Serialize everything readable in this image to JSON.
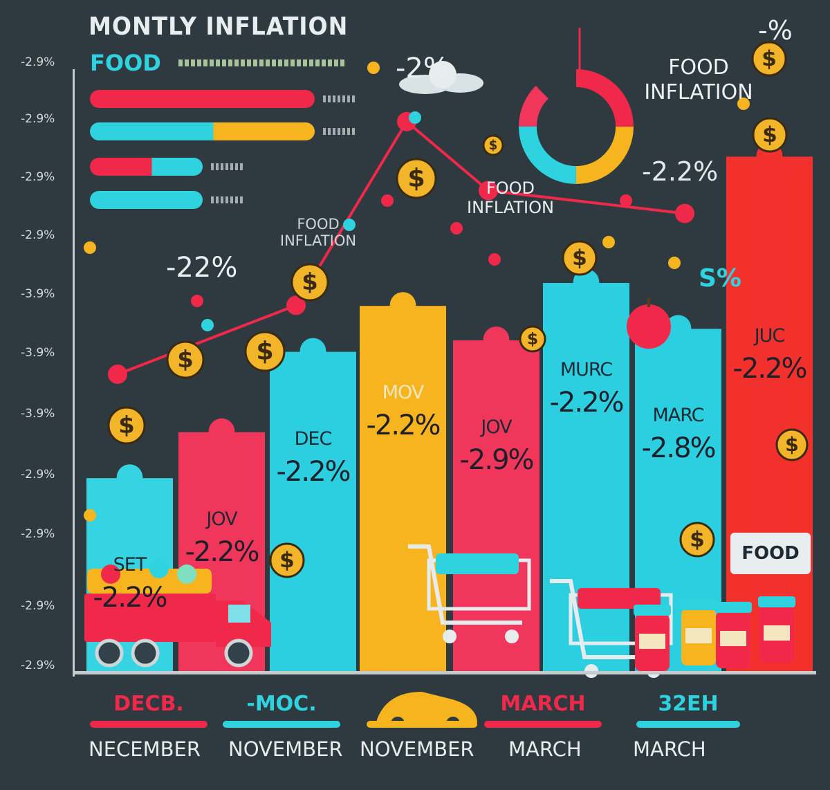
{
  "title": "MONTLY INFLATION",
  "legend": {
    "label": "FOOD"
  },
  "y_ticks": [
    "-2.9%",
    "-2.9%",
    "-2.9%",
    "-2.9%",
    "-3.9%",
    "-3.9%",
    "-3.9%",
    "-2.9%",
    "-2.9%",
    "-2.9%",
    "-2.9%"
  ],
  "floating_labels": {
    "top_pct": "-2%",
    "top_right_pct": "-%",
    "food_inflation_right": "FOOD INFLATION",
    "food_inflation_mid": "FOOD INFLATION",
    "food_inflation_left": "FOOD INFLATION",
    "mid_left_pct": "-22%",
    "right_pct": "-2.2%",
    "pct_symbol": "S%"
  },
  "chart_data": {
    "type": "bar",
    "title": "MONTLY INFLATION",
    "series_name": "FOOD",
    "categories": [
      "SET",
      "JOV",
      "DEC",
      "MOV",
      "JOV",
      "MURC",
      "MARC",
      "JUC"
    ],
    "value_labels": [
      "-2.2%",
      "-2.2%",
      "-2.2%",
      "-2.2%",
      "-2.9%",
      "-2.2%",
      "-2.8%",
      "-2.2%"
    ],
    "bar_heights": [
      36,
      44,
      58,
      66,
      60,
      70,
      62,
      92
    ],
    "colors": [
      "#36d3e3",
      "#f1365c",
      "#2ccfe0",
      "#f6b41e",
      "#f1365c",
      "#2ccfe0",
      "#2ccfe0",
      "#f2312e"
    ],
    "ylim": [
      0,
      100
    ],
    "horizontal_bars": [
      {
        "value": 100,
        "color": "#f0284a"
      },
      {
        "value": 100,
        "color": "#2fd3e0",
        "accent": "#f6b41e"
      },
      {
        "value": 50,
        "color": "#f0284a",
        "accent": "#2fd3e0"
      },
      {
        "value": 50,
        "color": "#2fd3e0"
      }
    ],
    "trend_points": [
      30,
      42,
      74,
      62,
      58
    ]
  },
  "bottom_tags": [
    {
      "label": "DECB.",
      "color": "#f0284a"
    },
    {
      "label": "-MOC.",
      "color": "#2fd3e0"
    },
    {
      "label": "",
      "color": "#f6b41e"
    },
    {
      "label": "MARCH",
      "color": "#f0284a"
    },
    {
      "label": "32EH",
      "color": "#2fd3e0"
    }
  ],
  "bottom_months": [
    "NECEMBER",
    "NOVEMBER",
    "NOVEMBER",
    "MARCH",
    "MARCH"
  ],
  "store_sign": "FOOD",
  "colors": {
    "background": "#2e3a3f",
    "red": "#f0284a",
    "cyan": "#2fd3e0",
    "yellow": "#f6b41e",
    "coin": "#f2b52a"
  }
}
